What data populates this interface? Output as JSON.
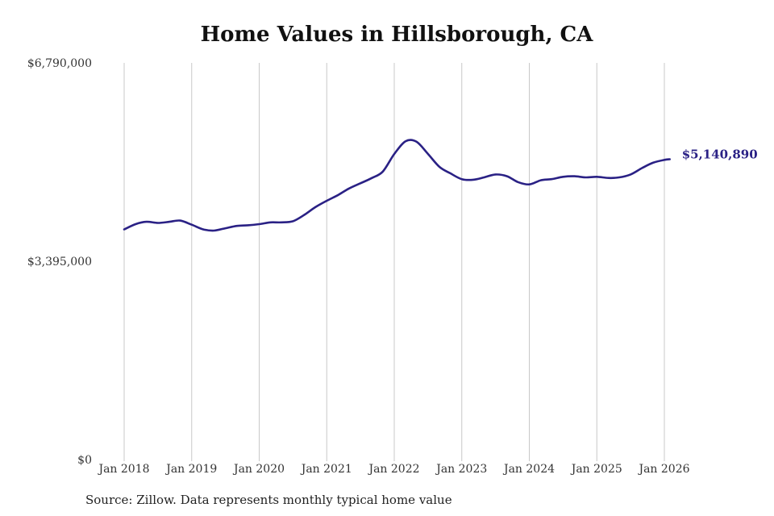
{
  "chart_data": {
    "type": "line",
    "title": "Home Values in Hillsborough, CA",
    "xlabel": "",
    "ylabel": "",
    "ylim": [
      0,
      6790000
    ],
    "y_ticks": [
      {
        "value": 0,
        "label": "$0"
      },
      {
        "value": 3395000,
        "label": "$3,395,000"
      },
      {
        "value": 6790000,
        "label": "$6,790,000"
      }
    ],
    "x_ticks": [
      {
        "value": 2018,
        "label": "Jan 2018"
      },
      {
        "value": 2019,
        "label": "Jan 2019"
      },
      {
        "value": 2020,
        "label": "Jan 2020"
      },
      {
        "value": 2021,
        "label": "Jan 2021"
      },
      {
        "value": 2022,
        "label": "Jan 2022"
      },
      {
        "value": 2023,
        "label": "Jan 2023"
      },
      {
        "value": 2024,
        "label": "Jan 2024"
      },
      {
        "value": 2025,
        "label": "Jan 2025"
      },
      {
        "value": 2026,
        "label": "Jan 2026"
      }
    ],
    "grid": "vertical",
    "legend": "none",
    "series_color": "#2a2185",
    "series": [
      {
        "x": [
          2018.0,
          2018.17,
          2018.33,
          2018.5,
          2018.67,
          2018.83,
          2019.0,
          2019.17,
          2019.33,
          2019.5,
          2019.67,
          2019.83,
          2020.0,
          2020.17,
          2020.33,
          2020.5,
          2020.67,
          2020.83,
          2021.0,
          2021.17,
          2021.33,
          2021.5,
          2021.67,
          2021.83,
          2022.0,
          2022.17,
          2022.33,
          2022.5,
          2022.67,
          2022.83,
          2023.0,
          2023.17,
          2023.33,
          2023.5,
          2023.67,
          2023.83,
          2024.0,
          2024.17,
          2024.33,
          2024.5,
          2024.67,
          2024.83,
          2025.0,
          2025.17,
          2025.33,
          2025.5,
          2025.67,
          2025.83,
          2026.0,
          2026.08
        ],
        "values": [
          3940000,
          4030000,
          4070000,
          4050000,
          4070000,
          4090000,
          4020000,
          3940000,
          3920000,
          3960000,
          4000000,
          4010000,
          4030000,
          4060000,
          4060000,
          4080000,
          4190000,
          4320000,
          4430000,
          4530000,
          4640000,
          4730000,
          4820000,
          4930000,
          5230000,
          5450000,
          5440000,
          5230000,
          5010000,
          4900000,
          4800000,
          4790000,
          4830000,
          4880000,
          4850000,
          4750000,
          4710000,
          4780000,
          4800000,
          4840000,
          4850000,
          4830000,
          4840000,
          4820000,
          4830000,
          4880000,
          4990000,
          5080000,
          5130000,
          5140890
        ]
      }
    ],
    "end_label": "$5,140,890"
  },
  "footer": {
    "source": "Source: Zillow. Data represents monthly typical home value"
  }
}
